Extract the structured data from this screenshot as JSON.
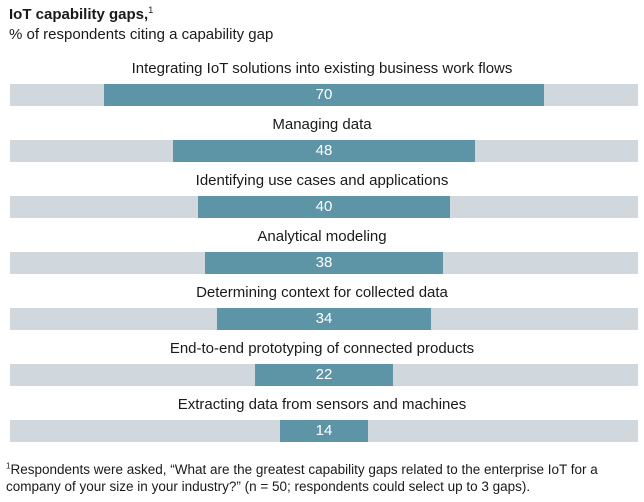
{
  "header": {
    "title": "IoT capability gaps,",
    "title_footnote_marker": "1",
    "subtitle": "% of respondents citing a capability gap"
  },
  "footnote": {
    "marker": "1",
    "text": "Respondents were asked, “What are the greatest capability gaps related to the enterprise IoT for a company of your size in your industry?” (n = 50; respondents could select up to 3 gaps)."
  },
  "colors": {
    "bar": "#5d94a6",
    "track": "#d0d8de",
    "value_text": "#ffffff"
  },
  "chart_data": {
    "type": "bar",
    "orientation": "horizontal",
    "alignment": "centered",
    "title": "IoT capability gaps,",
    "subtitle": "% of respondents citing a capability gap",
    "xlim": [
      0,
      100
    ],
    "grid": false,
    "categories": [
      "Integrating IoT solutions into existing business work flows",
      "Managing data",
      "Identifying use cases and applications",
      "Analytical modeling",
      "Determining context for collected data",
      "End-to-end prototyping of connected products",
      "Extracting data from sensors and machines"
    ],
    "values": [
      70,
      48,
      40,
      38,
      34,
      22,
      14
    ],
    "value_labels": [
      "70",
      "48",
      "40",
      "38",
      "34",
      "22",
      "14"
    ]
  }
}
